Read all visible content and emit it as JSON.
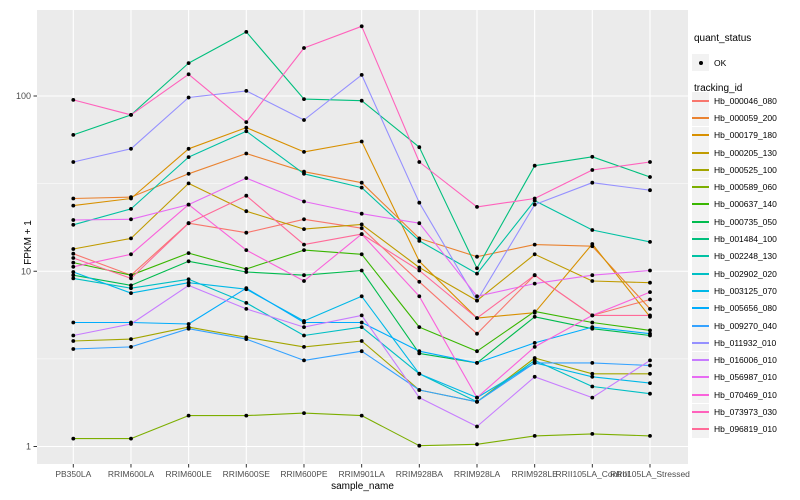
{
  "figure": {
    "background": "#FFFFFF",
    "panel_background": "#EBEBEB",
    "grid_color": "#FFFFFF",
    "point_color": "#000000",
    "tick_label_color": "#4D4D4D"
  },
  "axes": {
    "x_title": "sample_name",
    "y_title": "FPKM + 1"
  },
  "legend": {
    "quant_status_title": "quant_status",
    "quant_status_items": [
      {
        "label": "OK"
      }
    ],
    "tracking_id_title": "tracking_id"
  },
  "chart_data": {
    "type": "line",
    "title": "",
    "xlabel": "sample_name",
    "ylabel": "FPKM + 1",
    "y_scale": "log10",
    "ylim": [
      1,
      310
    ],
    "grid": true,
    "legend_position": "right",
    "point_shape": "filled-circle",
    "quant_status": "OK",
    "y_ticks": [
      {
        "label": "100",
        "value": 100
      },
      {
        "label": "10",
        "value": 10
      },
      {
        "label": "1",
        "value": 1
      }
    ],
    "y_minor_ticks": [
      3.1623,
      31.623
    ],
    "x_categories": [
      "PB350LA",
      "RRIM600LA",
      "RRIM600LE",
      "RRIM600SE",
      "RRIM600PE",
      "RRIM901LA",
      "RRIM928BA",
      "RRIM928LA",
      "RRIM928LE",
      "RRII105LA_Control",
      "RRII105LA_Stressed"
    ],
    "series": [
      {
        "name": "Hb_000046_080",
        "color": "#F8766D",
        "values": [
          12.6,
          9.5,
          18.8,
          16.6,
          19.8,
          17.6,
          8.7,
          4.4,
          9.5,
          5.6,
          6.9
        ]
      },
      {
        "name": "Hb_000059_200",
        "color": "#EA8331",
        "values": [
          26,
          26.5,
          36,
          47,
          37,
          32,
          15.4,
          12.1,
          14.2,
          13.9,
          6.1
        ]
      },
      {
        "name": "Hb_000179_180",
        "color": "#D89000",
        "values": [
          23.7,
          26,
          50,
          66,
          48,
          55,
          11.4,
          5.4,
          5.8,
          14.3,
          5.5
        ]
      },
      {
        "name": "Hb_000205_130",
        "color": "#C09B00",
        "values": [
          13.4,
          15.4,
          31.7,
          22,
          17.4,
          18.5,
          10.5,
          6.8,
          12.5,
          8.8,
          8.6
        ]
      },
      {
        "name": "Hb_000525_100",
        "color": "#A3A500",
        "values": [
          4.0,
          4.1,
          4.8,
          4.2,
          3.7,
          4.0,
          2.1,
          1.8,
          3.2,
          2.6,
          2.6
        ]
      },
      {
        "name": "Hb_000589_060",
        "color": "#7CAE00",
        "values": [
          1.11,
          1.11,
          1.5,
          1.5,
          1.55,
          1.5,
          1.01,
          1.03,
          1.15,
          1.18,
          1.15
        ]
      },
      {
        "name": "Hb_000637_140",
        "color": "#39B600",
        "values": [
          11.2,
          9.5,
          12.7,
          10.3,
          13.2,
          12.5,
          4.8,
          3.5,
          5.9,
          5.1,
          4.6
        ]
      },
      {
        "name": "Hb_000735_050",
        "color": "#00BB4E",
        "values": [
          9.5,
          8.3,
          11.4,
          9.9,
          9.5,
          10.1,
          3.4,
          3.0,
          5.5,
          4.7,
          4.3
        ]
      },
      {
        "name": "Hb_001484_100",
        "color": "#00BF7D",
        "values": [
          60,
          78,
          154,
          232,
          96,
          94,
          51,
          10.4,
          40,
          45,
          34.5
        ]
      },
      {
        "name": "Hb_002248_130",
        "color": "#00C1A3",
        "values": [
          18.4,
          22.7,
          44.8,
          63,
          36,
          30,
          14.9,
          9.7,
          25.3,
          17.2,
          14.7
        ]
      },
      {
        "name": "Hb_002902_020",
        "color": "#00BFC4",
        "values": [
          9.1,
          8.0,
          9.0,
          6.6,
          4.3,
          4.8,
          2.6,
          1.8,
          3.1,
          2.2,
          2.0
        ]
      },
      {
        "name": "Hb_003125_070",
        "color": "#00B8E7",
        "values": [
          9.9,
          7.5,
          8.6,
          7.9,
          5.2,
          7.2,
          2.6,
          1.9,
          3.0,
          2.5,
          2.3
        ]
      },
      {
        "name": "Hb_005656_080",
        "color": "#00ACFC",
        "values": [
          5.1,
          5.1,
          5.0,
          8.0,
          5.1,
          5.1,
          3.5,
          3.0,
          3.9,
          4.8,
          4.4
        ]
      },
      {
        "name": "Hb_009270_040",
        "color": "#35A2FF",
        "values": [
          3.6,
          3.7,
          4.7,
          4.1,
          3.1,
          3.5,
          2.1,
          1.8,
          3.0,
          3.0,
          2.9
        ]
      },
      {
        "name": "Hb_011932_010",
        "color": "#9590FF",
        "values": [
          42,
          50,
          98,
          107,
          73,
          132,
          24.6,
          6.8,
          24,
          32,
          29
        ]
      },
      {
        "name": "Hb_016006_010",
        "color": "#C77CFF",
        "values": [
          4.3,
          5.0,
          8.3,
          6.1,
          4.8,
          5.6,
          1.9,
          1.3,
          2.5,
          1.9,
          3.1
        ]
      },
      {
        "name": "Hb_056987_010",
        "color": "#E76BF3",
        "values": [
          19.6,
          19.8,
          24,
          34,
          25,
          21.3,
          18.8,
          7.2,
          8.5,
          9.5,
          10.1
        ]
      },
      {
        "name": "Hb_070469_010",
        "color": "#FA62DB",
        "values": [
          10.6,
          12.5,
          24,
          13.2,
          8.8,
          16.3,
          7.2,
          1.9,
          3.7,
          5.6,
          7.6
        ]
      },
      {
        "name": "Hb_073973_030",
        "color": "#FF62BC",
        "values": [
          95,
          78,
          133,
          71,
          188,
          250,
          42,
          23.3,
          26,
          37.8,
          42
        ]
      },
      {
        "name": "Hb_096819_010",
        "color": "#FF6A98",
        "values": [
          11.9,
          9.1,
          18.8,
          27,
          14.2,
          16.3,
          10.1,
          5.4,
          9.5,
          5.6,
          5.6
        ]
      }
    ]
  }
}
